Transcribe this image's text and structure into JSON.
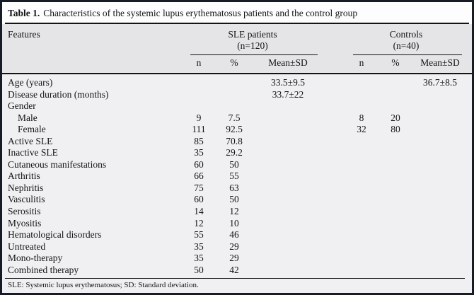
{
  "colors": {
    "frame_border": "#171b26",
    "title_bg": "#fdfdfd",
    "header_bg": "#e5e5e8",
    "body_bg": "#f0f0f2",
    "rule": "#141414",
    "text": "#141414"
  },
  "table": {
    "title_label": "Table 1.",
    "title_text": "Characteristics of the systemic lupus erythematosus patients and the control group",
    "header": {
      "features_label": "Features",
      "groups": [
        {
          "name": "SLE patients",
          "count": "(n=120)",
          "sub": [
            "n",
            "%",
            "Mean±SD"
          ]
        },
        {
          "name": "Controls",
          "count": "(n=40)",
          "sub": [
            "n",
            "%",
            "Mean±SD"
          ]
        }
      ]
    },
    "rows": [
      {
        "feature": "Age (years)",
        "indent": false,
        "sle": [
          "",
          "",
          "33.5±9.5"
        ],
        "ctrl": [
          "",
          "",
          "36.7±8.5"
        ]
      },
      {
        "feature": "Disease duration (months)",
        "indent": false,
        "sle": [
          "",
          "",
          "33.7±22"
        ],
        "ctrl": [
          "",
          "",
          ""
        ]
      },
      {
        "feature": "Gender",
        "indent": false,
        "sle": [
          "",
          "",
          ""
        ],
        "ctrl": [
          "",
          "",
          ""
        ]
      },
      {
        "feature": "Male",
        "indent": true,
        "sle": [
          "9",
          "7.5",
          ""
        ],
        "ctrl": [
          "8",
          "20",
          ""
        ]
      },
      {
        "feature": "Female",
        "indent": true,
        "sle": [
          "111",
          "92.5",
          ""
        ],
        "ctrl": [
          "32",
          "80",
          ""
        ]
      },
      {
        "feature": "Active SLE",
        "indent": false,
        "sle": [
          "85",
          "70.8",
          ""
        ],
        "ctrl": [
          "",
          "",
          ""
        ]
      },
      {
        "feature": "Inactive SLE",
        "indent": false,
        "sle": [
          "35",
          "29.2",
          ""
        ],
        "ctrl": [
          "",
          "",
          ""
        ]
      },
      {
        "feature": "Cutaneous manifestations",
        "indent": false,
        "sle": [
          "60",
          "50",
          ""
        ],
        "ctrl": [
          "",
          "",
          ""
        ]
      },
      {
        "feature": "Arthritis",
        "indent": false,
        "sle": [
          "66",
          "55",
          ""
        ],
        "ctrl": [
          "",
          "",
          ""
        ]
      },
      {
        "feature": "Nephritis",
        "indent": false,
        "sle": [
          "75",
          "63",
          ""
        ],
        "ctrl": [
          "",
          "",
          ""
        ]
      },
      {
        "feature": "Vasculitis",
        "indent": false,
        "sle": [
          "60",
          "50",
          ""
        ],
        "ctrl": [
          "",
          "",
          ""
        ]
      },
      {
        "feature": "Serositis",
        "indent": false,
        "sle": [
          "14",
          "12",
          ""
        ],
        "ctrl": [
          "",
          "",
          ""
        ]
      },
      {
        "feature": "Myositis",
        "indent": false,
        "sle": [
          "12",
          "10",
          ""
        ],
        "ctrl": [
          "",
          "",
          ""
        ]
      },
      {
        "feature": "Hematological disorders",
        "indent": false,
        "sle": [
          "55",
          "46",
          ""
        ],
        "ctrl": [
          "",
          "",
          ""
        ]
      },
      {
        "feature": "Untreated",
        "indent": false,
        "sle": [
          "35",
          "29",
          ""
        ],
        "ctrl": [
          "",
          "",
          ""
        ]
      },
      {
        "feature": "Mono-therapy",
        "indent": false,
        "sle": [
          "35",
          "29",
          ""
        ],
        "ctrl": [
          "",
          "",
          ""
        ]
      },
      {
        "feature": "Combined therapy",
        "indent": false,
        "sle": [
          "50",
          "42",
          ""
        ],
        "ctrl": [
          "",
          "",
          ""
        ]
      }
    ],
    "footnote": "SLE: Systemic lupus erythematosus; SD: Standard deviation."
  }
}
